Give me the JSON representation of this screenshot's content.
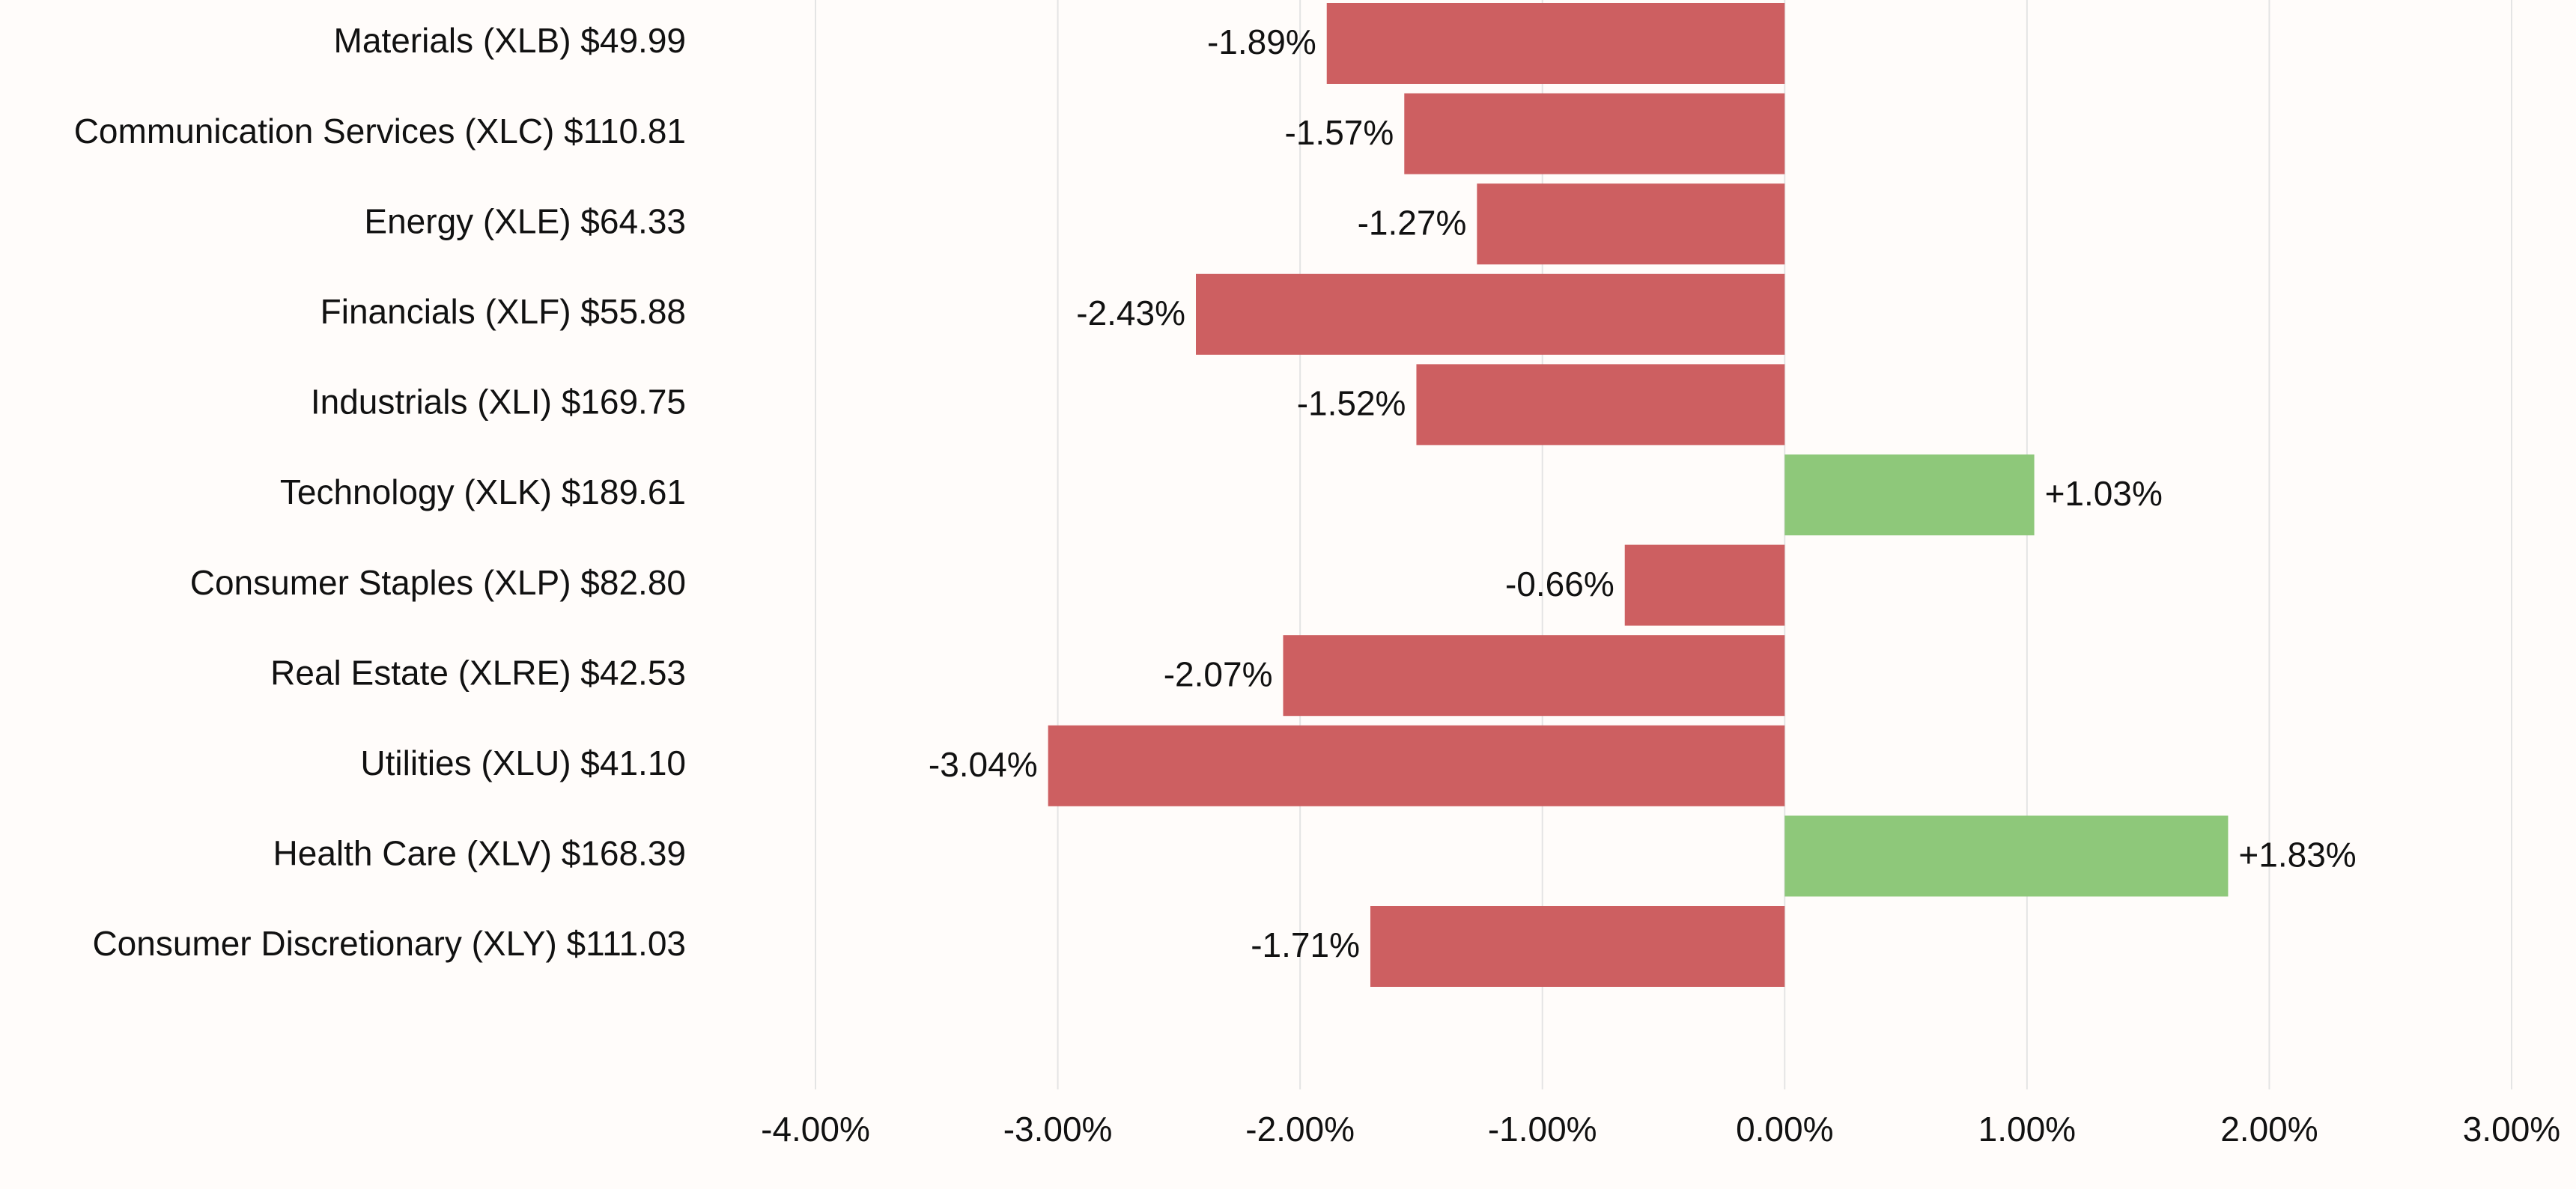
{
  "chart_data": {
    "type": "bar",
    "orientation": "horizontal",
    "categories": [
      "Materials (XLB) $49.99",
      "Communication Services (XLC) $110.81",
      "Energy (XLE) $64.33",
      "Financials (XLF) $55.88",
      "Industrials (XLI) $169.75",
      "Technology (XLK) $189.61",
      "Consumer Staples (XLP) $82.80",
      "Real Estate (XLRE) $42.53",
      "Utilities (XLU) $41.10",
      "Health Care (XLV) $168.39",
      "Consumer Discretionary (XLY) $111.03"
    ],
    "values": [
      -1.89,
      -1.57,
      -1.27,
      -2.43,
      -1.52,
      1.03,
      -0.66,
      -2.07,
      -3.04,
      1.83,
      -1.71
    ],
    "value_labels": [
      "-1.89%",
      "-1.57%",
      "-1.27%",
      "-2.43%",
      "-1.52%",
      "+1.03%",
      "-0.66%",
      "-2.07%",
      "-3.04%",
      "+1.83%",
      "-1.71%"
    ],
    "xlim": [
      -4,
      3
    ],
    "x_ticks": [
      -4,
      -3,
      -2,
      -1,
      0,
      1,
      2,
      3
    ],
    "x_tick_labels": [
      "-4.00%",
      "-3.00%",
      "-2.00%",
      "-1.00%",
      "0.00%",
      "1.00%",
      "2.00%",
      "3.00%"
    ],
    "grid": "vertical",
    "colors": {
      "negative": "#cd5f61",
      "positive": "#8ec87a",
      "grid": "#e4e4e4",
      "background": "#fffcfa",
      "text": "#111111"
    }
  }
}
